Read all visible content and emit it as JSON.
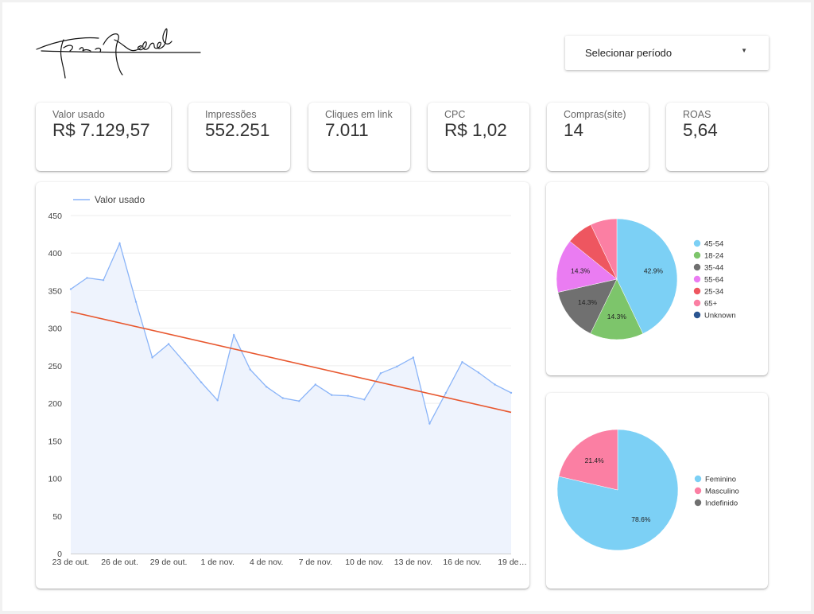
{
  "brand": {
    "signature_alt": "Eric Andrade"
  },
  "period_selector": {
    "label": "Selecionar período"
  },
  "kpis": [
    {
      "label": "Valor usado",
      "value": "R$ 7.129,57"
    },
    {
      "label": "Impressões",
      "value": "552.251"
    },
    {
      "label": "Cliques em link",
      "value": "7.011"
    },
    {
      "label": "CPC",
      "value": "R$ 1,02"
    },
    {
      "label": "Compras(site)",
      "value": "14"
    },
    {
      "label": "ROAS",
      "value": "5,64"
    }
  ],
  "colors": {
    "line": "#8ab4f8",
    "area": "#eef3fd",
    "trend": "#e8572e",
    "grid": "#eeeeee"
  },
  "chart_data": [
    {
      "type": "area",
      "legend": [
        "Valor usado"
      ],
      "legend_position": "top-left",
      "grid": true,
      "ylim": [
        0,
        450
      ],
      "yticks": [
        0,
        50,
        100,
        150,
        200,
        250,
        300,
        350,
        400,
        450
      ],
      "x": [
        "23 de out.",
        "24 de out.",
        "25 de out.",
        "26 de out.",
        "27 de out.",
        "28 de out.",
        "29 de out.",
        "30 de out.",
        "31 de out.",
        "1 de nov.",
        "2 de nov.",
        "3 de nov.",
        "4 de nov.",
        "5 de nov.",
        "6 de nov.",
        "7 de nov.",
        "8 de nov.",
        "9 de nov.",
        "10 de nov.",
        "11 de nov.",
        "12 de nov.",
        "13 de nov.",
        "14 de nov.",
        "15 de nov.",
        "16 de nov.",
        "17 de nov.",
        "18 de nov.",
        "19 de nov."
      ],
      "xtick_labels": [
        "23 de out.",
        "26 de out.",
        "29 de out.",
        "1 de nov.",
        "4 de nov.",
        "7 de nov.",
        "10 de nov.",
        "13 de nov.",
        "16 de nov.",
        "19 de…"
      ],
      "series": [
        {
          "name": "Valor usado",
          "values": [
            352,
            367,
            364,
            413,
            335,
            261,
            279,
            254,
            228,
            204,
            291,
            245,
            222,
            207,
            203,
            225,
            211,
            210,
            205,
            240,
            249,
            261,
            173,
            214,
            255,
            241,
            225,
            214
          ]
        }
      ],
      "trendline": {
        "start": 322,
        "end": 188
      }
    },
    {
      "type": "pie",
      "series": [
        {
          "label": "45-54",
          "value": 42.9,
          "color": "#7cd0f5",
          "slice_label": "42.9%"
        },
        {
          "label": "18-24",
          "value": 14.3,
          "color": "#7dc56b",
          "slice_label": "14.3%"
        },
        {
          "label": "35-44",
          "value": 14.3,
          "color": "#707070",
          "slice_label": "14.3%"
        },
        {
          "label": "55-64",
          "value": 14.3,
          "color": "#ea7cf2",
          "slice_label": "14.3%"
        },
        {
          "label": "25-34",
          "value": 7.1,
          "color": "#ee5660",
          "slice_label": ""
        },
        {
          "label": "65+",
          "value": 7.1,
          "color": "#fb7fa3",
          "slice_label": ""
        },
        {
          "label": "Unknown",
          "value": 0,
          "color": "#2b5591",
          "slice_label": ""
        }
      ],
      "legend_position": "right"
    },
    {
      "type": "pie",
      "series": [
        {
          "label": "Feminino",
          "value": 78.6,
          "color": "#7cd0f5",
          "slice_label": "78.6%"
        },
        {
          "label": "Masculino",
          "value": 21.4,
          "color": "#fb7fa3",
          "slice_label": "21.4%"
        },
        {
          "label": "Indefinido",
          "value": 0,
          "color": "#707070",
          "slice_label": ""
        }
      ],
      "legend_position": "right"
    }
  ]
}
